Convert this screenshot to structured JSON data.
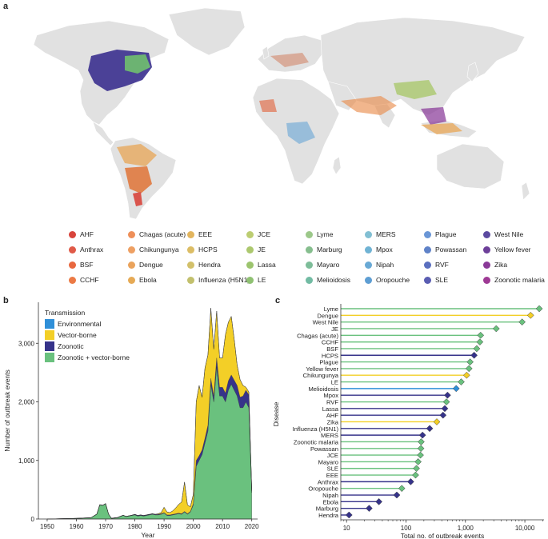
{
  "panels": {
    "a": "a",
    "b": "b",
    "c": "c"
  },
  "map_legend": [
    {
      "label": "AHF",
      "color": "#d8443c"
    },
    {
      "label": "Anthrax",
      "color": "#e05a48"
    },
    {
      "label": "BSF",
      "color": "#e8683f"
    },
    {
      "label": "CCHF",
      "color": "#ec7a45"
    },
    {
      "label": "Chagas (acute)",
      "color": "#ee8f59"
    },
    {
      "label": "Chikungunya",
      "color": "#eea063"
    },
    {
      "label": "Dengue",
      "color": "#eaa35c"
    },
    {
      "label": "Ebola",
      "color": "#e6aa55"
    },
    {
      "label": "EEE",
      "color": "#e2b55e"
    },
    {
      "label": "HCPS",
      "color": "#dcbd65"
    },
    {
      "label": "Hendra",
      "color": "#d2c06a"
    },
    {
      "label": "Influenza (H5N1)",
      "color": "#c2c06d"
    },
    {
      "label": "JCE",
      "color": "#bccd72"
    },
    {
      "label": "JE",
      "color": "#acc86e"
    },
    {
      "label": "Lassa",
      "color": "#9cc46e"
    },
    {
      "label": "LE",
      "color": "#8fc172"
    },
    {
      "label": "Lyme",
      "color": "#9cc88a"
    },
    {
      "label": "Marburg",
      "color": "#86be8e"
    },
    {
      "label": "Mayaro",
      "color": "#7dbd99"
    },
    {
      "label": "Melioidosis",
      "color": "#72bba3"
    },
    {
      "label": "MERS",
      "color": "#82bfd3"
    },
    {
      "label": "Mpox",
      "color": "#70b3d4"
    },
    {
      "label": "Nipah",
      "color": "#69a9d5"
    },
    {
      "label": "Oropouche",
      "color": "#5e9ed3"
    },
    {
      "label": "Plague",
      "color": "#6a96d6"
    },
    {
      "label": "Powassan",
      "color": "#5f82c8"
    },
    {
      "label": "RVF",
      "color": "#5a6fbf"
    },
    {
      "label": "SLE",
      "color": "#5a5db2"
    },
    {
      "label": "West Nile",
      "color": "#5b4aa0"
    },
    {
      "label": "Yellow fever",
      "color": "#6d3f99"
    },
    {
      "label": "Zika",
      "color": "#8a3a98"
    },
    {
      "label": "Zoonotic malaria",
      "color": "#9e3a95"
    }
  ],
  "chart_data": [
    {
      "type": "area",
      "panel": "b",
      "xlabel": "Year",
      "ylabel": "Number of outbreak events",
      "xlim": [
        1947,
        2022
      ],
      "ylim": [
        0,
        3700
      ],
      "xticks": [
        "1950",
        "1960",
        "1970",
        "1980",
        "1990",
        "2000",
        "2010",
        "2020"
      ],
      "yticks": [
        "0",
        "1,000",
        "2,000",
        "3,000"
      ],
      "legend_title": "Transmission",
      "legend_position": "top-left",
      "x": [
        1950,
        1955,
        1960,
        1965,
        1967,
        1968,
        1969,
        1970,
        1971,
        1972,
        1973,
        1974,
        1975,
        1976,
        1977,
        1978,
        1979,
        1980,
        1981,
        1982,
        1983,
        1984,
        1985,
        1986,
        1987,
        1988,
        1989,
        1990,
        1991,
        1992,
        1993,
        1994,
        1995,
        1996,
        1997,
        1998,
        1999,
        2000,
        2001,
        2002,
        2003,
        2004,
        2005,
        2006,
        2007,
        2008,
        2009,
        2010,
        2011,
        2012,
        2013,
        2014,
        2015,
        2016,
        2017,
        2018,
        2019,
        2020
      ],
      "series": [
        {
          "name": "Zoonotic + vector-borne",
          "color": "#6ac17e",
          "values": [
            0,
            5,
            10,
            20,
            80,
            240,
            230,
            260,
            80,
            10,
            15,
            20,
            40,
            60,
            40,
            50,
            60,
            70,
            50,
            60,
            50,
            60,
            70,
            80,
            70,
            70,
            80,
            100,
            60,
            60,
            70,
            80,
            90,
            80,
            120,
            80,
            120,
            240,
            900,
            1000,
            1100,
            1300,
            1500,
            2300,
            2000,
            2600,
            2100,
            2100,
            2000,
            2200,
            2300,
            2200,
            2100,
            1900,
            1900,
            2000,
            1900,
            450
          ]
        },
        {
          "name": "Zoonotic",
          "color": "#36338a",
          "values": [
            0,
            1,
            2,
            3,
            5,
            5,
            5,
            5,
            5,
            3,
            5,
            5,
            5,
            5,
            5,
            5,
            5,
            10,
            10,
            10,
            10,
            10,
            10,
            10,
            10,
            10,
            10,
            10,
            10,
            10,
            10,
            10,
            10,
            10,
            10,
            10,
            10,
            20,
            100,
            80,
            80,
            80,
            100,
            100,
            100,
            150,
            150,
            150,
            150,
            160,
            160,
            170,
            180,
            180,
            200,
            200,
            220,
            30
          ]
        },
        {
          "name": "Vector-borne",
          "color": "#f3cf27",
          "values": [
            0,
            0,
            0,
            0,
            0,
            0,
            0,
            0,
            0,
            0,
            0,
            0,
            0,
            0,
            0,
            0,
            0,
            0,
            0,
            0,
            0,
            0,
            0,
            0,
            0,
            10,
            20,
            90,
            50,
            40,
            60,
            100,
            150,
            200,
            500,
            150,
            80,
            160,
            1000,
            1200,
            900,
            1200,
            1200,
            1200,
            800,
            800,
            500,
            500,
            1000,
            1000,
            1000,
            700,
            350,
            300,
            180,
            50,
            50,
            10
          ]
        },
        {
          "name": "Environmental",
          "color": "#2f8fd8",
          "values": [
            0,
            0,
            0,
            0,
            0,
            0,
            0,
            0,
            0,
            0,
            0,
            0,
            0,
            0,
            0,
            0,
            0,
            0,
            0,
            0,
            0,
            0,
            0,
            0,
            0,
            0,
            0,
            0,
            0,
            0,
            0,
            0,
            0,
            0,
            0,
            0,
            0,
            0,
            0,
            0,
            0,
            0,
            0,
            0,
            0,
            0,
            0,
            0,
            0,
            0,
            0,
            0,
            0,
            0,
            0,
            0,
            0,
            0
          ]
        }
      ]
    },
    {
      "type": "lollipop",
      "panel": "c",
      "xlabel": "Total no. of outbreak events",
      "ylabel": "Disease",
      "xscale": "log",
      "xlim": [
        8,
        21000
      ],
      "xticks": [
        {
          "value": 10,
          "label": "10"
        },
        {
          "value": 100,
          "label": "100"
        },
        {
          "value": 1000,
          "label": "1,000"
        },
        {
          "value": 10000,
          "label": "10,000"
        }
      ],
      "color_by_transmission": {
        "Zoonotic + vector-borne": "#6ac17e",
        "Vector-borne": "#f3cf27",
        "Zoonotic": "#36338a",
        "Environmental": "#2f8fd8"
      },
      "points": [
        {
          "disease": "Lyme",
          "value": 17500,
          "transmission": "Zoonotic + vector-borne"
        },
        {
          "disease": "Dengue",
          "value": 12500,
          "transmission": "Vector-borne"
        },
        {
          "disease": "West Nile",
          "value": 9000,
          "transmission": "Zoonotic + vector-borne"
        },
        {
          "disease": "JE",
          "value": 3300,
          "transmission": "Zoonotic + vector-borne"
        },
        {
          "disease": "Chagas (acute)",
          "value": 1800,
          "transmission": "Zoonotic + vector-borne"
        },
        {
          "disease": "CCHF",
          "value": 1750,
          "transmission": "Zoonotic + vector-borne"
        },
        {
          "disease": "BSF",
          "value": 1550,
          "transmission": "Zoonotic + vector-borne"
        },
        {
          "disease": "HCPS",
          "value": 1400,
          "transmission": "Zoonotic"
        },
        {
          "disease": "Plague",
          "value": 1200,
          "transmission": "Zoonotic + vector-borne"
        },
        {
          "disease": "Yellow fever",
          "value": 1150,
          "transmission": "Zoonotic + vector-borne"
        },
        {
          "disease": "Chikungunya",
          "value": 1050,
          "transmission": "Vector-borne"
        },
        {
          "disease": "LE",
          "value": 850,
          "transmission": "Zoonotic + vector-borne"
        },
        {
          "disease": "Melioidosis",
          "value": 700,
          "transmission": "Environmental"
        },
        {
          "disease": "Mpox",
          "value": 500,
          "transmission": "Zoonotic"
        },
        {
          "disease": "RVF",
          "value": 480,
          "transmission": "Zoonotic + vector-borne"
        },
        {
          "disease": "Lassa",
          "value": 450,
          "transmission": "Zoonotic"
        },
        {
          "disease": "AHF",
          "value": 420,
          "transmission": "Zoonotic"
        },
        {
          "disease": "Zika",
          "value": 330,
          "transmission": "Vector-borne"
        },
        {
          "disease": "Influenza (H5N1)",
          "value": 250,
          "transmission": "Zoonotic"
        },
        {
          "disease": "MERS",
          "value": 190,
          "transmission": "Zoonotic"
        },
        {
          "disease": "Zoonotic malaria",
          "value": 180,
          "transmission": "Zoonotic + vector-borne"
        },
        {
          "disease": "Powassan",
          "value": 178,
          "transmission": "Zoonotic + vector-borne"
        },
        {
          "disease": "JCE",
          "value": 175,
          "transmission": "Zoonotic + vector-borne"
        },
        {
          "disease": "Mayaro",
          "value": 160,
          "transmission": "Zoonotic + vector-borne"
        },
        {
          "disease": "SLE",
          "value": 150,
          "transmission": "Zoonotic + vector-borne"
        },
        {
          "disease": "EEE",
          "value": 145,
          "transmission": "Zoonotic + vector-borne"
        },
        {
          "disease": "Anthrax",
          "value": 120,
          "transmission": "Zoonotic"
        },
        {
          "disease": "Oropouche",
          "value": 85,
          "transmission": "Zoonotic + vector-borne"
        },
        {
          "disease": "Nipah",
          "value": 70,
          "transmission": "Zoonotic"
        },
        {
          "disease": "Ebola",
          "value": 35,
          "transmission": "Zoonotic"
        },
        {
          "disease": "Marburg",
          "value": 24,
          "transmission": "Zoonotic"
        },
        {
          "disease": "Hendra",
          "value": 11,
          "transmission": "Zoonotic"
        }
      ]
    }
  ]
}
